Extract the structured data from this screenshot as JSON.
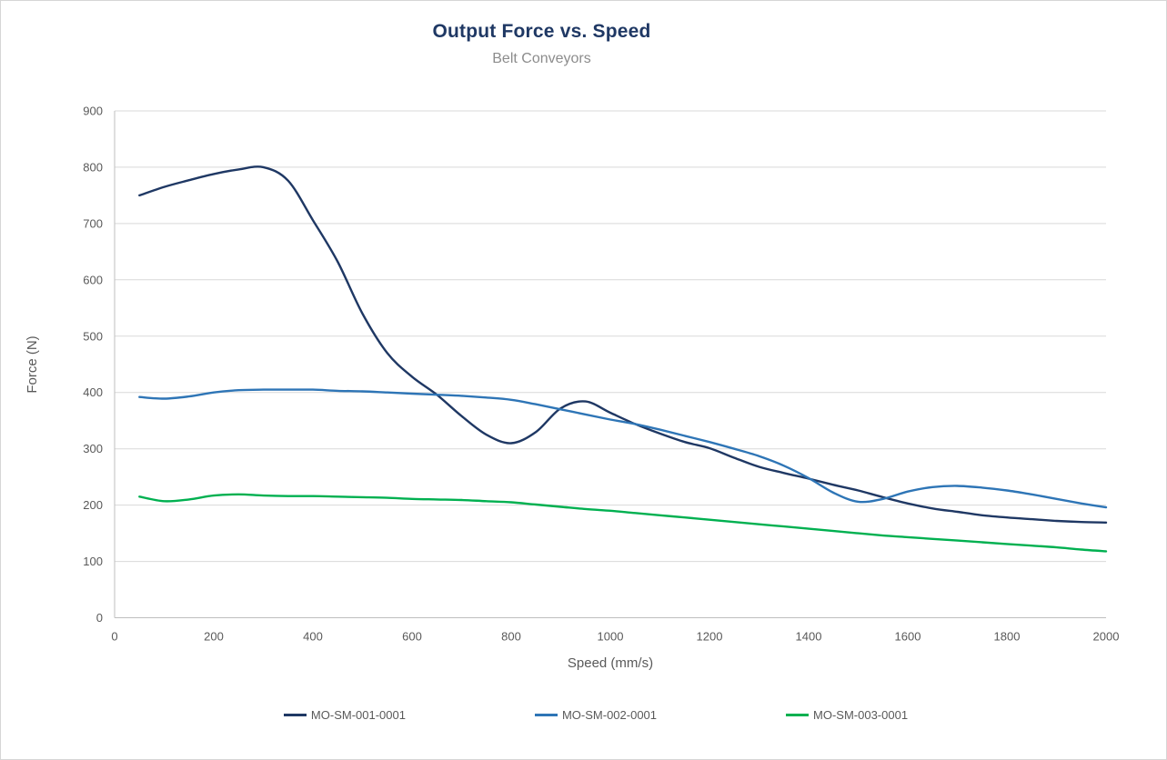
{
  "chart_data": {
    "type": "line",
    "title": "Output Force vs. Speed",
    "subtitle": "Belt Conveyors",
    "xlabel": "Speed (mm/s)",
    "ylabel": "Force (N)",
    "xlim": [
      0,
      2000
    ],
    "ylim": [
      0,
      900
    ],
    "x_ticks": [
      0,
      200,
      400,
      600,
      800,
      1000,
      1200,
      1400,
      1600,
      1800,
      2000
    ],
    "y_ticks": [
      0,
      100,
      200,
      300,
      400,
      500,
      600,
      700,
      800,
      900
    ],
    "grid": "horizontal",
    "legend_position": "bottom",
    "x": [
      50,
      100,
      150,
      200,
      250,
      300,
      350,
      400,
      450,
      500,
      550,
      600,
      650,
      700,
      750,
      800,
      850,
      900,
      950,
      1000,
      1050,
      1100,
      1150,
      1200,
      1250,
      1300,
      1350,
      1400,
      1450,
      1500,
      1550,
      1600,
      1650,
      1700,
      1750,
      1800,
      1850,
      1900,
      1950,
      2000
    ],
    "series": [
      {
        "name": "MO-SM-001-0001",
        "color": "#1f3864",
        "y": [
          750,
          765,
          777,
          788,
          796,
          800,
          776,
          706,
          632,
          540,
          470,
          428,
          396,
          358,
          325,
          310,
          330,
          372,
          384,
          364,
          344,
          327,
          312,
          301,
          284,
          268,
          257,
          247,
          236,
          226,
          214,
          203,
          194,
          188,
          182,
          178,
          175,
          172,
          170,
          169
        ]
      },
      {
        "name": "MO-SM-002-0001",
        "color": "#2e75b6",
        "y": [
          392,
          389,
          393,
          400,
          404,
          405,
          405,
          405,
          403,
          402,
          400,
          398,
          396,
          394,
          391,
          387,
          379,
          370,
          361,
          352,
          344,
          334,
          323,
          312,
          300,
          287,
          270,
          248,
          222,
          206,
          211,
          224,
          232,
          234,
          231,
          226,
          219,
          211,
          203,
          196
        ]
      },
      {
        "name": "MO-SM-003-0001",
        "color": "#00b050",
        "y": [
          215,
          207,
          210,
          217,
          219,
          217,
          216,
          216,
          215,
          214,
          213,
          211,
          210,
          209,
          207,
          205,
          201,
          197,
          193,
          190,
          186,
          182,
          178,
          174,
          170,
          166,
          162,
          158,
          154,
          150,
          146,
          143,
          140,
          137,
          134,
          131,
          128,
          125,
          121,
          118
        ]
      }
    ]
  },
  "colors": {
    "title": "#1f3864",
    "subtitle": "#8c8c8c",
    "tick_text": "#595959",
    "gridline": "#d9d9d9",
    "axis_line": "#bfbfbf",
    "background": "#ffffff",
    "frame_border": "#d6d6d6"
  }
}
